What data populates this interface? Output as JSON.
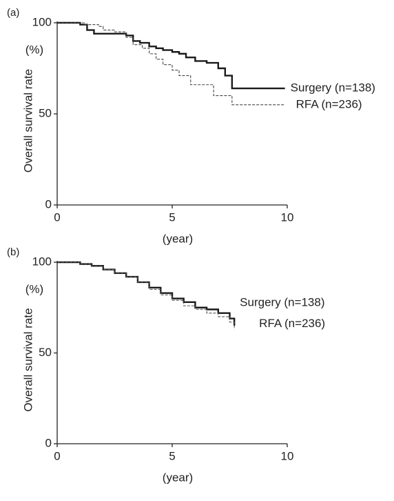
{
  "chart_data": [
    {
      "type": "line",
      "step": true,
      "panel_label": "(a)",
      "y_label": "Overall survival rate",
      "y_unit": "(%)",
      "x_label": "(year)",
      "xlim": [
        0,
        10
      ],
      "xticks": [
        0,
        5,
        10
      ],
      "ylim": [
        0,
        100
      ],
      "yticks": [
        0,
        50,
        100
      ],
      "series": [
        {
          "name": "Surgery (n=138)",
          "color": "#1a1a1a",
          "line_style": "solid",
          "x": [
            0,
            1,
            1.3,
            1.6,
            2.5,
            3,
            3.3,
            3.6,
            4,
            4.3,
            4.6,
            5,
            5.3,
            5.6,
            6,
            6.5,
            7,
            7.3,
            7.6,
            9.9
          ],
          "values": [
            100,
            99,
            96,
            94,
            94,
            93,
            90,
            89,
            87,
            86,
            85,
            84,
            83,
            81,
            79,
            78,
            75,
            71,
            64,
            64
          ]
        },
        {
          "name": "RFA (n=236)",
          "color": "#444444",
          "line_style": "dashed",
          "x": [
            0,
            1.2,
            1.8,
            2,
            2.5,
            3,
            3.3,
            3.7,
            4,
            4.3,
            4.6,
            5,
            5.3,
            5.8,
            6.8,
            7.6,
            9.9
          ],
          "values": [
            100,
            99,
            98,
            96,
            95,
            92,
            88,
            86,
            83,
            80,
            77,
            74,
            71,
            66,
            60,
            55,
            55
          ]
        }
      ]
    },
    {
      "type": "line",
      "step": true,
      "panel_label": "(b)",
      "y_label": "Overall survival rate",
      "y_unit": "(%)",
      "x_label": "(year)",
      "xlim": [
        0,
        10
      ],
      "xticks": [
        0,
        5,
        10
      ],
      "ylim": [
        0,
        100
      ],
      "yticks": [
        0,
        50,
        100
      ],
      "series": [
        {
          "name": "Surgery (n=138)",
          "color": "#1a1a1a",
          "line_style": "solid",
          "x": [
            0,
            1,
            1.5,
            2,
            2.5,
            3,
            3.5,
            4,
            4.5,
            5,
            5.5,
            6,
            6.5,
            7,
            7.5,
            7.7
          ],
          "values": [
            100,
            99,
            98,
            96,
            94,
            92,
            89,
            86,
            83,
            80,
            78,
            75,
            74,
            72,
            69,
            65
          ]
        },
        {
          "name": "RFA (n=236)",
          "color": "#555555",
          "line_style": "dashed",
          "x": [
            0,
            1,
            1.5,
            2,
            2.5,
            3,
            3.5,
            4,
            4.5,
            5,
            5.5,
            6,
            6.5,
            7,
            7.5,
            7.7
          ],
          "values": [
            100,
            99,
            98,
            96,
            94,
            92,
            89,
            85,
            82,
            79,
            76,
            74,
            72,
            70,
            67,
            63
          ]
        }
      ]
    }
  ]
}
